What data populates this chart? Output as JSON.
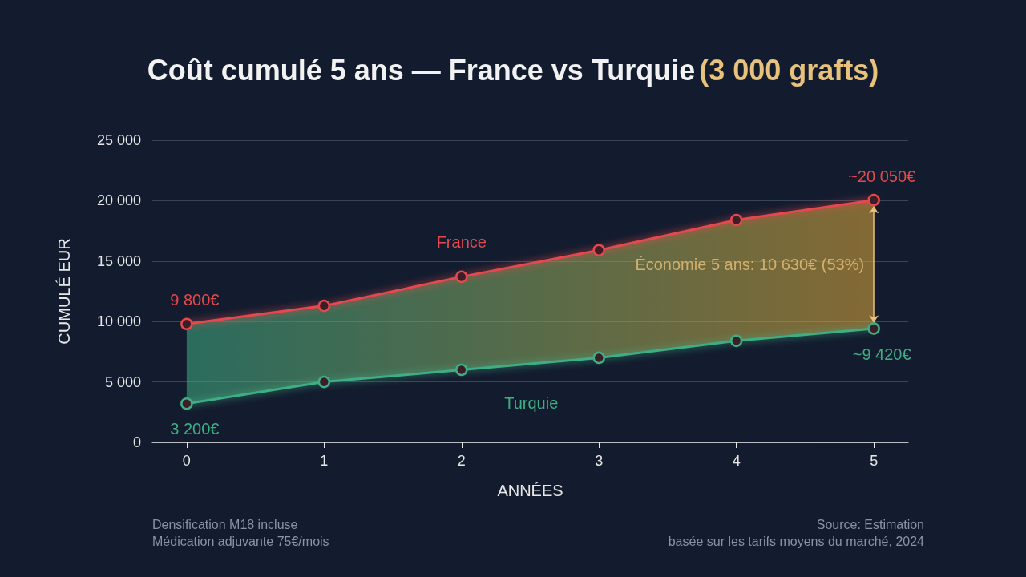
{
  "chart_data": {
    "type": "line",
    "title": "Coût cumulé 5 ans — France vs Turquie",
    "subtitle": "(3 000 grafts)",
    "xlabel": "ANNÉES",
    "ylabel": "CUMULÉ EUR",
    "x": [
      0,
      1,
      2,
      3,
      4,
      5
    ],
    "xlim": [
      -0.25,
      5.25
    ],
    "xticks": [
      0,
      1,
      2,
      3,
      4,
      5
    ],
    "ylim": [
      0,
      25000
    ],
    "yticks": [
      {
        "value": 0,
        "label": "0"
      },
      {
        "value": 5000,
        "label": "5 000"
      },
      {
        "value": 10000,
        "label": "10 000"
      },
      {
        "value": 15000,
        "label": "15 000"
      },
      {
        "value": 20000,
        "label": "20 000"
      },
      {
        "value": 25000,
        "label": "25 000"
      }
    ],
    "series": [
      {
        "name": "France",
        "color": "#e5484d",
        "values": [
          9800,
          11300,
          13700,
          15900,
          18400,
          20050
        ],
        "value_labels": [
          "9 800€",
          null,
          null,
          null,
          null,
          "~20 050€"
        ]
      },
      {
        "name": "Turquie",
        "color": "#3fae84",
        "values": [
          3200,
          5000,
          6000,
          7000,
          8400,
          9420
        ],
        "value_labels": [
          "3 200€",
          null,
          null,
          null,
          null,
          "~9 420€"
        ]
      }
    ],
    "annotations": [
      "Économie 5 ans: 10 630€ (53%)",
      "Densification M18 incluse\nMédication adjuvante 75€/mois",
      "Source: Estimation\nbasée sur les tarifs moyens du marché, 2024"
    ],
    "grid": "y",
    "legend": false,
    "marker": "circle",
    "line_style": "solid"
  }
}
